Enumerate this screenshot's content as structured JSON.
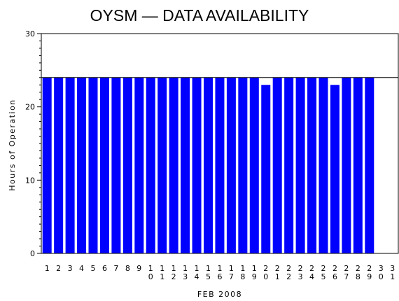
{
  "chart_data": {
    "type": "bar",
    "title": "OYSM — DATA AVAILABILITY",
    "xlabel": "FEB 2008",
    "ylabel": "Hours of Operation",
    "ylim": [
      0,
      30
    ],
    "yticks": [
      "0",
      "10",
      "20",
      "30"
    ],
    "reference_line": 24,
    "categories": [
      "1",
      "2",
      "3",
      "4",
      "5",
      "6",
      "7",
      "8",
      "9",
      "10",
      "11",
      "12",
      "13",
      "14",
      "15",
      "16",
      "17",
      "18",
      "19",
      "20",
      "21",
      "22",
      "23",
      "24",
      "25",
      "26",
      "27",
      "28",
      "29",
      "30",
      "31"
    ],
    "values": [
      24,
      24,
      24,
      24,
      24,
      24,
      24,
      24,
      24,
      24,
      24,
      24,
      24,
      24,
      24,
      24,
      24,
      24,
      24,
      23,
      24,
      24,
      24,
      24,
      24,
      23,
      24,
      24,
      24,
      null,
      null
    ],
    "bar_color": "#0000ff",
    "grid": false
  }
}
